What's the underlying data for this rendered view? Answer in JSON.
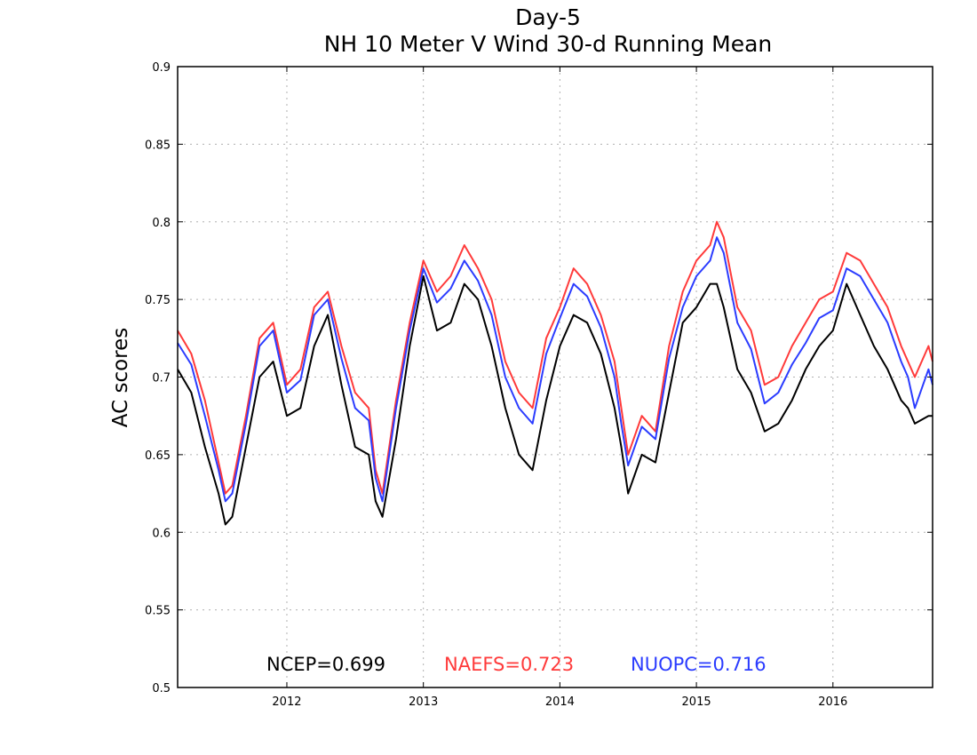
{
  "chart_data": {
    "type": "line",
    "title": "Day-5",
    "subtitle": "NH 10 Meter V Wind 30-d Running Mean",
    "ylabel": "AC scores",
    "xlabel": "",
    "xlim": [
      2011.2,
      2016.73
    ],
    "ylim": [
      0.5,
      0.9
    ],
    "grid": true,
    "x_ticks": [
      2012,
      2013,
      2014,
      2015,
      2016
    ],
    "x_tick_labels": [
      "2012",
      "2013",
      "2014",
      "2015",
      "2016"
    ],
    "y_ticks": [
      0.5,
      0.55,
      0.6,
      0.65,
      0.7,
      0.75,
      0.8,
      0.85,
      0.9
    ],
    "y_tick_labels": [
      "0.5",
      "0.55",
      "0.6",
      "0.65",
      "0.7",
      "0.75",
      "0.8",
      "0.85",
      "0.9"
    ],
    "x": [
      2011.2,
      2011.3,
      2011.4,
      2011.5,
      2011.55,
      2011.6,
      2011.7,
      2011.8,
      2011.9,
      2012.0,
      2012.1,
      2012.2,
      2012.3,
      2012.4,
      2012.5,
      2012.6,
      2012.65,
      2012.7,
      2012.8,
      2012.9,
      2013.0,
      2013.1,
      2013.2,
      2013.3,
      2013.4,
      2013.5,
      2013.6,
      2013.7,
      2013.8,
      2013.9,
      2014.0,
      2014.1,
      2014.2,
      2014.3,
      2014.4,
      2014.45,
      2014.5,
      2014.6,
      2014.7,
      2014.8,
      2014.9,
      2015.0,
      2015.1,
      2015.15,
      2015.2,
      2015.3,
      2015.4,
      2015.5,
      2015.6,
      2015.7,
      2015.8,
      2015.9,
      2016.0,
      2016.1,
      2016.2,
      2016.3,
      2016.4,
      2016.5,
      2016.55,
      2016.6,
      2016.7,
      2016.73
    ],
    "series": [
      {
        "name": "NCEP",
        "color": "#000000",
        "values": [
          0.705,
          0.69,
          0.655,
          0.625,
          0.605,
          0.61,
          0.655,
          0.7,
          0.71,
          0.675,
          0.68,
          0.72,
          0.74,
          0.695,
          0.655,
          0.65,
          0.62,
          0.61,
          0.66,
          0.72,
          0.765,
          0.73,
          0.735,
          0.76,
          0.75,
          0.72,
          0.68,
          0.65,
          0.64,
          0.685,
          0.72,
          0.74,
          0.735,
          0.715,
          0.68,
          0.655,
          0.625,
          0.65,
          0.645,
          0.69,
          0.735,
          0.745,
          0.76,
          0.76,
          0.745,
          0.705,
          0.69,
          0.665,
          0.67,
          0.685,
          0.705,
          0.72,
          0.73,
          0.76,
          0.74,
          0.72,
          0.705,
          0.685,
          0.68,
          0.67,
          0.675,
          0.675
        ]
      },
      {
        "name": "NAEFS",
        "color": "#ff3a3a",
        "values": [
          0.73,
          0.715,
          0.685,
          0.645,
          0.625,
          0.63,
          0.675,
          0.725,
          0.735,
          0.695,
          0.705,
          0.745,
          0.755,
          0.72,
          0.69,
          0.68,
          0.64,
          0.625,
          0.685,
          0.735,
          0.775,
          0.755,
          0.765,
          0.785,
          0.77,
          0.75,
          0.71,
          0.69,
          0.68,
          0.725,
          0.745,
          0.77,
          0.76,
          0.74,
          0.71,
          0.68,
          0.65,
          0.675,
          0.665,
          0.72,
          0.755,
          0.775,
          0.785,
          0.8,
          0.79,
          0.745,
          0.73,
          0.695,
          0.7,
          0.72,
          0.735,
          0.75,
          0.755,
          0.78,
          0.775,
          0.76,
          0.745,
          0.72,
          0.71,
          0.7,
          0.72,
          0.71
        ]
      },
      {
        "name": "NUOPC",
        "color": "#2b3cff",
        "values": [
          0.722,
          0.708,
          0.675,
          0.64,
          0.62,
          0.625,
          0.67,
          0.72,
          0.73,
          0.69,
          0.698,
          0.74,
          0.75,
          0.712,
          0.68,
          0.672,
          0.635,
          0.62,
          0.68,
          0.73,
          0.77,
          0.748,
          0.757,
          0.775,
          0.762,
          0.74,
          0.7,
          0.68,
          0.67,
          0.715,
          0.738,
          0.76,
          0.752,
          0.732,
          0.7,
          0.67,
          0.643,
          0.668,
          0.66,
          0.712,
          0.745,
          0.765,
          0.775,
          0.79,
          0.78,
          0.735,
          0.718,
          0.683,
          0.69,
          0.708,
          0.722,
          0.738,
          0.743,
          0.77,
          0.765,
          0.75,
          0.735,
          0.71,
          0.7,
          0.68,
          0.705,
          0.695
        ]
      }
    ],
    "legend_placement": "bottom-center",
    "legend": [
      {
        "label": "NCEP=0.699",
        "color": "#000000"
      },
      {
        "label": "NAEFS=0.723",
        "color": "#ff3a3a"
      },
      {
        "label": "NUOPC=0.716",
        "color": "#2b3cff"
      }
    ]
  }
}
